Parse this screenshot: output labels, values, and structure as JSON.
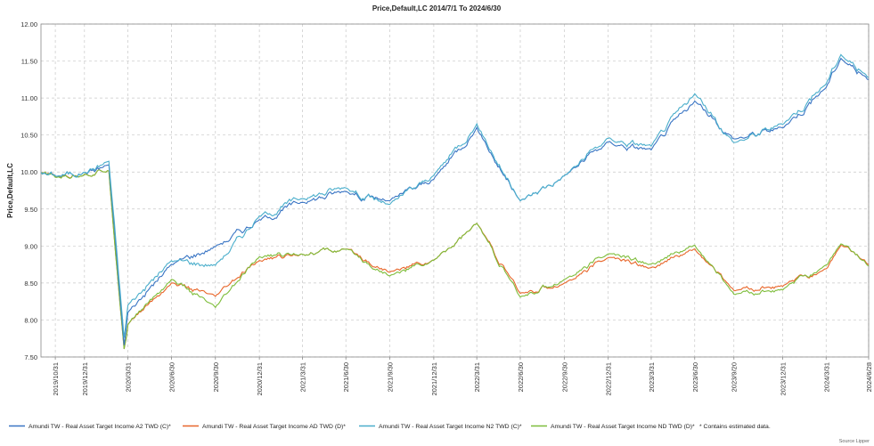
{
  "chart_data": {
    "type": "line",
    "title": "Price,Default,LC 2014/7/1 To 2024/6/30",
    "ylabel": "Price,Default,LC",
    "xlabel": "",
    "ylim": [
      7.5,
      12.0
    ],
    "yticks": [
      "12.00",
      "11.50",
      "11.00",
      "10.50",
      "10.00",
      "9.50",
      "9.00",
      "8.50",
      "8.00",
      "7.50"
    ],
    "x_ticks": [
      "2019/10/31",
      "2019/12/31",
      "2020/3/31",
      "2020/6/30",
      "2020/9/30",
      "2020/12/31",
      "2021/3/31",
      "2021/6/30",
      "2021/9/30",
      "2021/12/31",
      "2022/3/31",
      "2022/6/30",
      "2022/9/30",
      "2022/12/31",
      "2023/3/31",
      "2023/6/30",
      "2023/9/20",
      "2023/12/31",
      "2024/3/31",
      "2024/6/28"
    ],
    "grid": true,
    "legend_position": "bottom",
    "series": [
      {
        "name": "Amundi TW - Real Asset Target Income A2 TWD (C)*",
        "color": "#3a75c4",
        "points": [
          [
            "2019/10/1",
            10.0
          ],
          [
            "2019/10/31",
            9.95
          ],
          [
            "2019/12/31",
            10.0
          ],
          [
            "2020/2/20",
            10.1
          ],
          [
            "2020/3/23",
            7.65
          ],
          [
            "2020/3/31",
            8.1
          ],
          [
            "2020/6/30",
            8.75
          ],
          [
            "2020/9/30",
            9.0
          ],
          [
            "2020/12/31",
            9.35
          ],
          [
            "2021/3/31",
            9.6
          ],
          [
            "2021/6/30",
            9.75
          ],
          [
            "2021/9/30",
            9.6
          ],
          [
            "2021/12/31",
            9.9
          ],
          [
            "2022/3/31",
            10.6
          ],
          [
            "2022/6/30",
            9.6
          ],
          [
            "2022/9/30",
            9.95
          ],
          [
            "2022/12/31",
            10.4
          ],
          [
            "2023/3/31",
            10.3
          ],
          [
            "2023/6/30",
            10.95
          ],
          [
            "2023/9/20",
            10.45
          ],
          [
            "2023/12/31",
            10.6
          ],
          [
            "2024/3/31",
            11.15
          ],
          [
            "2024/5/1",
            11.55
          ],
          [
            "2024/6/28",
            11.25
          ]
        ]
      },
      {
        "name": "Amundi TW - Real Asset Target Income AD TWD (D)*",
        "color": "#e8662a",
        "points": [
          [
            "2019/10/1",
            9.98
          ],
          [
            "2019/10/31",
            9.93
          ],
          [
            "2019/12/31",
            9.98
          ],
          [
            "2020/2/20",
            10.02
          ],
          [
            "2020/3/23",
            7.62
          ],
          [
            "2020/3/31",
            7.95
          ],
          [
            "2020/6/30",
            8.5
          ],
          [
            "2020/9/30",
            8.3
          ],
          [
            "2020/12/31",
            8.8
          ],
          [
            "2021/3/31",
            8.9
          ],
          [
            "2021/6/30",
            8.95
          ],
          [
            "2021/9/30",
            8.65
          ],
          [
            "2021/12/31",
            8.8
          ],
          [
            "2022/3/31",
            9.3
          ],
          [
            "2022/6/30",
            8.35
          ],
          [
            "2022/9/30",
            8.5
          ],
          [
            "2022/12/31",
            8.85
          ],
          [
            "2023/3/31",
            8.7
          ],
          [
            "2023/6/30",
            8.95
          ],
          [
            "2023/9/20",
            8.4
          ],
          [
            "2023/12/31",
            8.45
          ],
          [
            "2024/3/31",
            8.7
          ],
          [
            "2024/5/1",
            9.0
          ],
          [
            "2024/6/28",
            8.75
          ]
        ]
      },
      {
        "name": "Amundi TW - Real Asset Target Income N2 TWD (C)*",
        "color": "#4aaecb",
        "points": [
          [
            "2019/10/1",
            10.0
          ],
          [
            "2019/10/31",
            9.95
          ],
          [
            "2019/12/31",
            10.0
          ],
          [
            "2020/2/20",
            10.15
          ],
          [
            "2020/3/23",
            7.75
          ],
          [
            "2020/3/31",
            8.2
          ],
          [
            "2020/6/30",
            8.8
          ],
          [
            "2020/9/30",
            8.75
          ],
          [
            "2020/12/31",
            9.4
          ],
          [
            "2021/3/31",
            9.65
          ],
          [
            "2021/6/30",
            9.8
          ],
          [
            "2021/9/30",
            9.55
          ],
          [
            "2021/12/31",
            9.95
          ],
          [
            "2022/3/31",
            10.65
          ],
          [
            "2022/6/30",
            9.6
          ],
          [
            "2022/9/30",
            9.95
          ],
          [
            "2022/12/31",
            10.45
          ],
          [
            "2023/3/31",
            10.35
          ],
          [
            "2023/6/30",
            11.05
          ],
          [
            "2023/9/20",
            10.4
          ],
          [
            "2023/12/31",
            10.65
          ],
          [
            "2024/3/31",
            11.2
          ],
          [
            "2024/5/1",
            11.6
          ],
          [
            "2024/6/28",
            11.28
          ]
        ]
      },
      {
        "name": "Amundi TW - Real Asset Target Income ND TWD (D)*",
        "color": "#7ebd3b",
        "points": [
          [
            "2019/10/1",
            9.98
          ],
          [
            "2019/10/31",
            9.92
          ],
          [
            "2019/12/31",
            9.98
          ],
          [
            "2020/2/20",
            10.02
          ],
          [
            "2020/3/23",
            7.62
          ],
          [
            "2020/3/31",
            7.95
          ],
          [
            "2020/6/30",
            8.55
          ],
          [
            "2020/9/30",
            8.15
          ],
          [
            "2020/12/31",
            8.85
          ],
          [
            "2021/3/31",
            8.9
          ],
          [
            "2021/6/30",
            8.95
          ],
          [
            "2021/9/30",
            8.6
          ],
          [
            "2021/12/31",
            8.8
          ],
          [
            "2022/3/31",
            9.3
          ],
          [
            "2022/6/30",
            8.3
          ],
          [
            "2022/9/30",
            8.55
          ],
          [
            "2022/12/31",
            8.9
          ],
          [
            "2023/3/31",
            8.75
          ],
          [
            "2023/6/30",
            9.0
          ],
          [
            "2023/9/20",
            8.35
          ],
          [
            "2023/12/31",
            8.4
          ],
          [
            "2024/3/31",
            8.75
          ],
          [
            "2024/5/1",
            9.02
          ],
          [
            "2024/6/28",
            8.73
          ]
        ]
      }
    ],
    "footnote": "*  Contains estimated data.",
    "source": "Source Lipper"
  }
}
